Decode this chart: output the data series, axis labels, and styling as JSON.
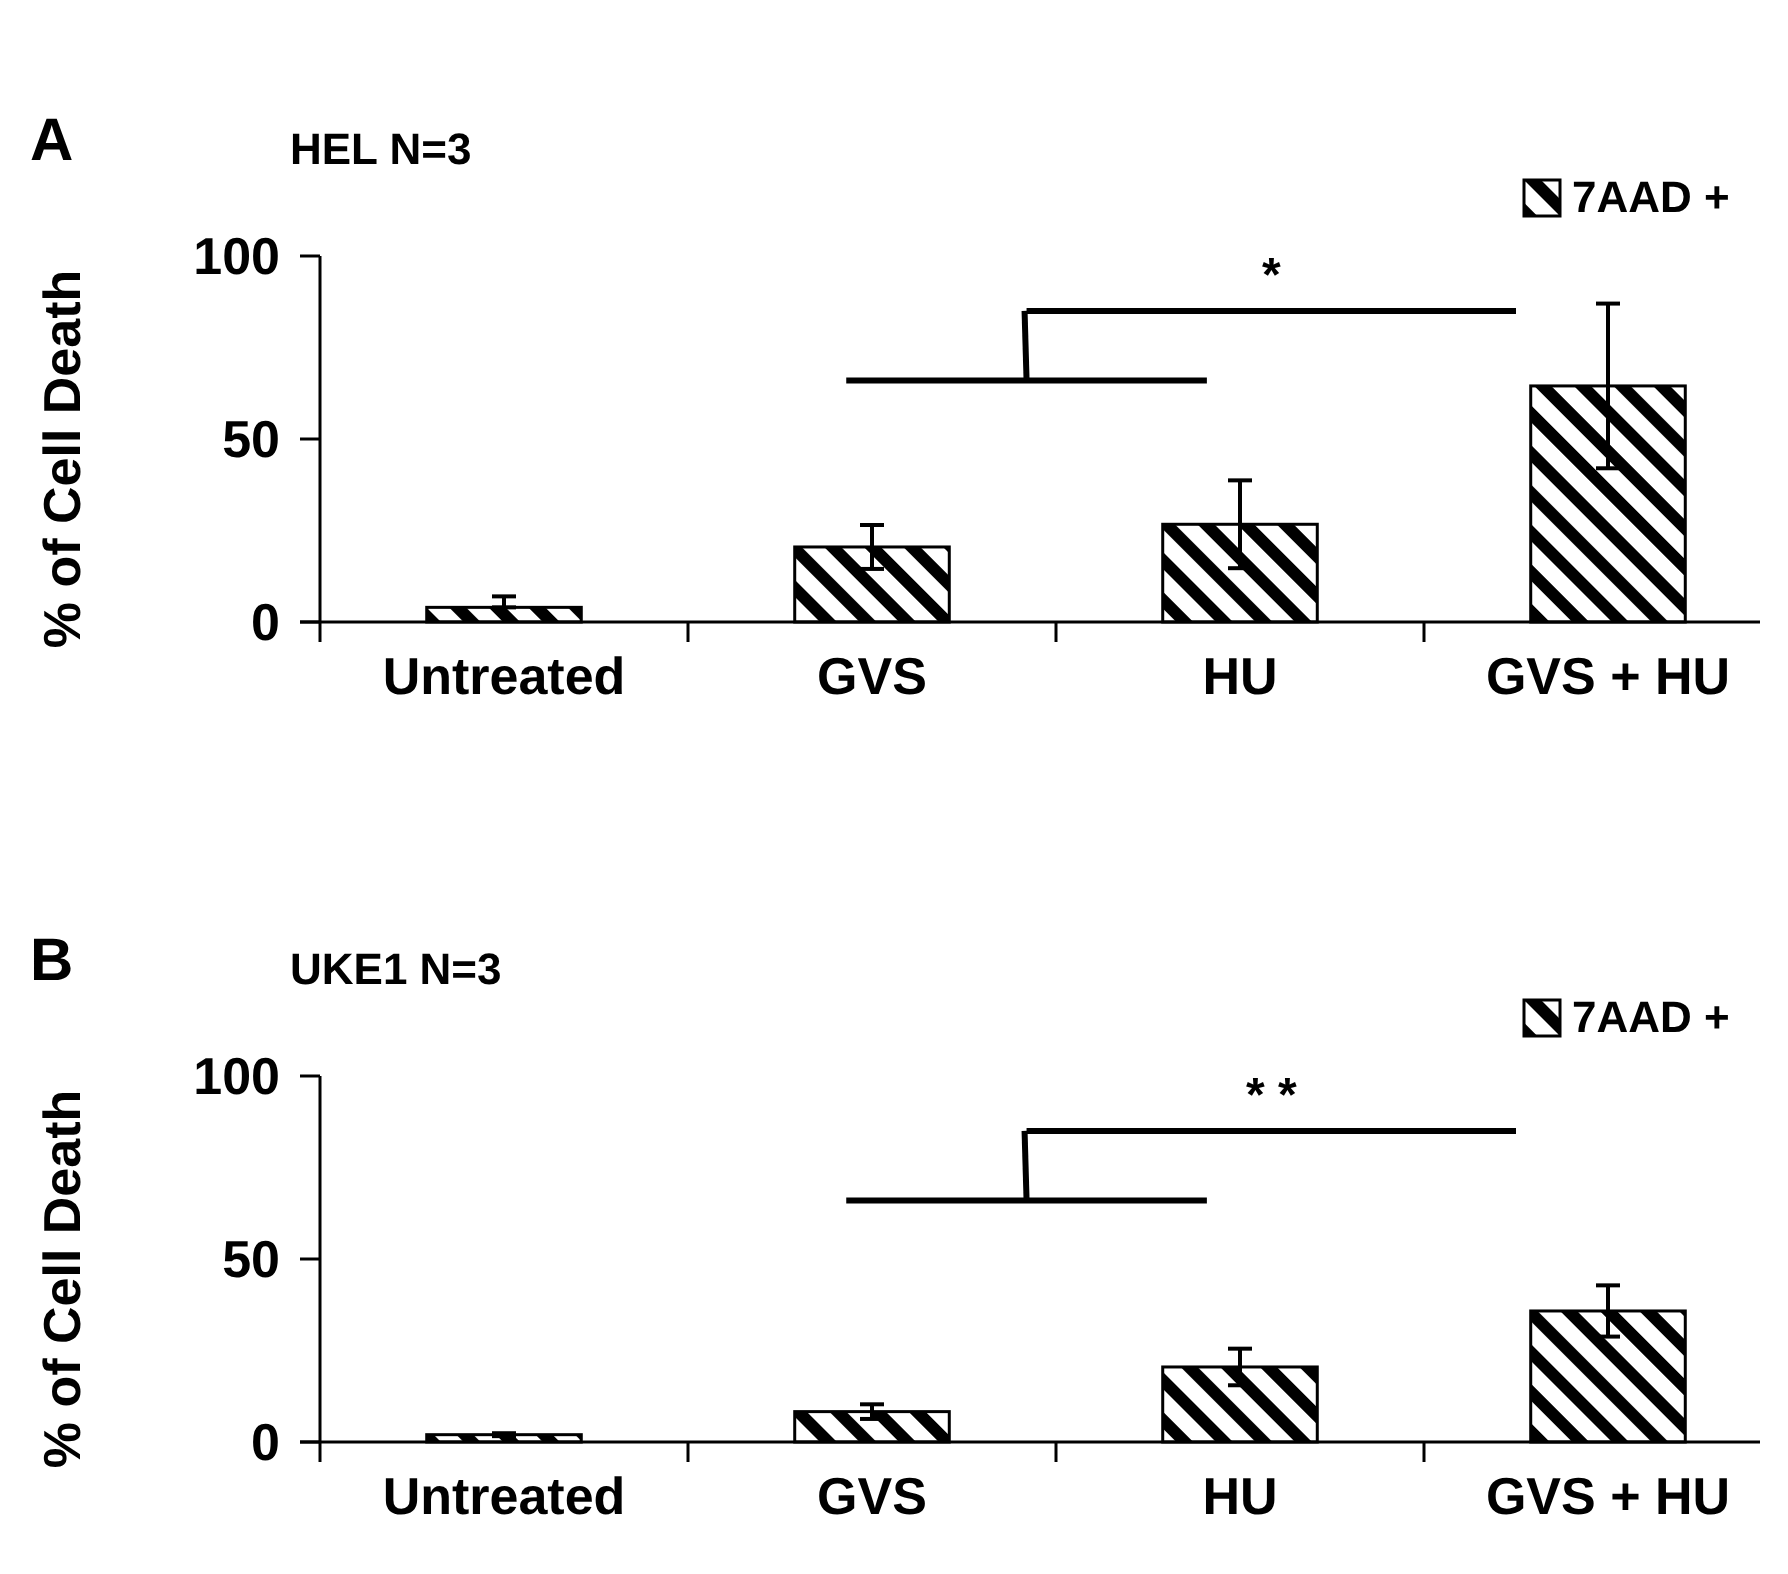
{
  "chart_data": [
    {
      "type": "bar",
      "title": "HEL N=3",
      "ylabel": "% of Cell Death",
      "annotations": [
        "A",
        "*"
      ],
      "categories": [
        "Untreated",
        "GVS",
        "HU",
        "GVS + HU"
      ],
      "series": [
        {
          "name": "7AAD +",
          "color": "#000000",
          "values": [
            4,
            20.5,
            26.7,
            64.5
          ],
          "errors": [
            [
              4,
              7
            ],
            6,
            12,
            22.5
          ]
        }
      ],
      "ylim": [
        0,
        100
      ],
      "yticks": [
        0,
        50,
        100
      ],
      "legend": "top right",
      "grid": false
    },
    {
      "type": "bar",
      "title": "UKE1 N=3",
      "ylabel": "% of Cell Death",
      "annotations": [
        "B",
        "* *"
      ],
      "categories": [
        "Untreated",
        "GVS",
        "HU",
        "GVS + HU"
      ],
      "series": [
        {
          "name": "7AAD +",
          "color": "#000000",
          "values": [
            2,
            8.3,
            20.5,
            35.8
          ],
          "errors": [
            0.4,
            2,
            5,
            7
          ]
        }
      ],
      "ylim": [
        0,
        100
      ],
      "yticks": [
        0,
        50,
        100
      ],
      "legend": "top right",
      "grid": false
    }
  ]
}
